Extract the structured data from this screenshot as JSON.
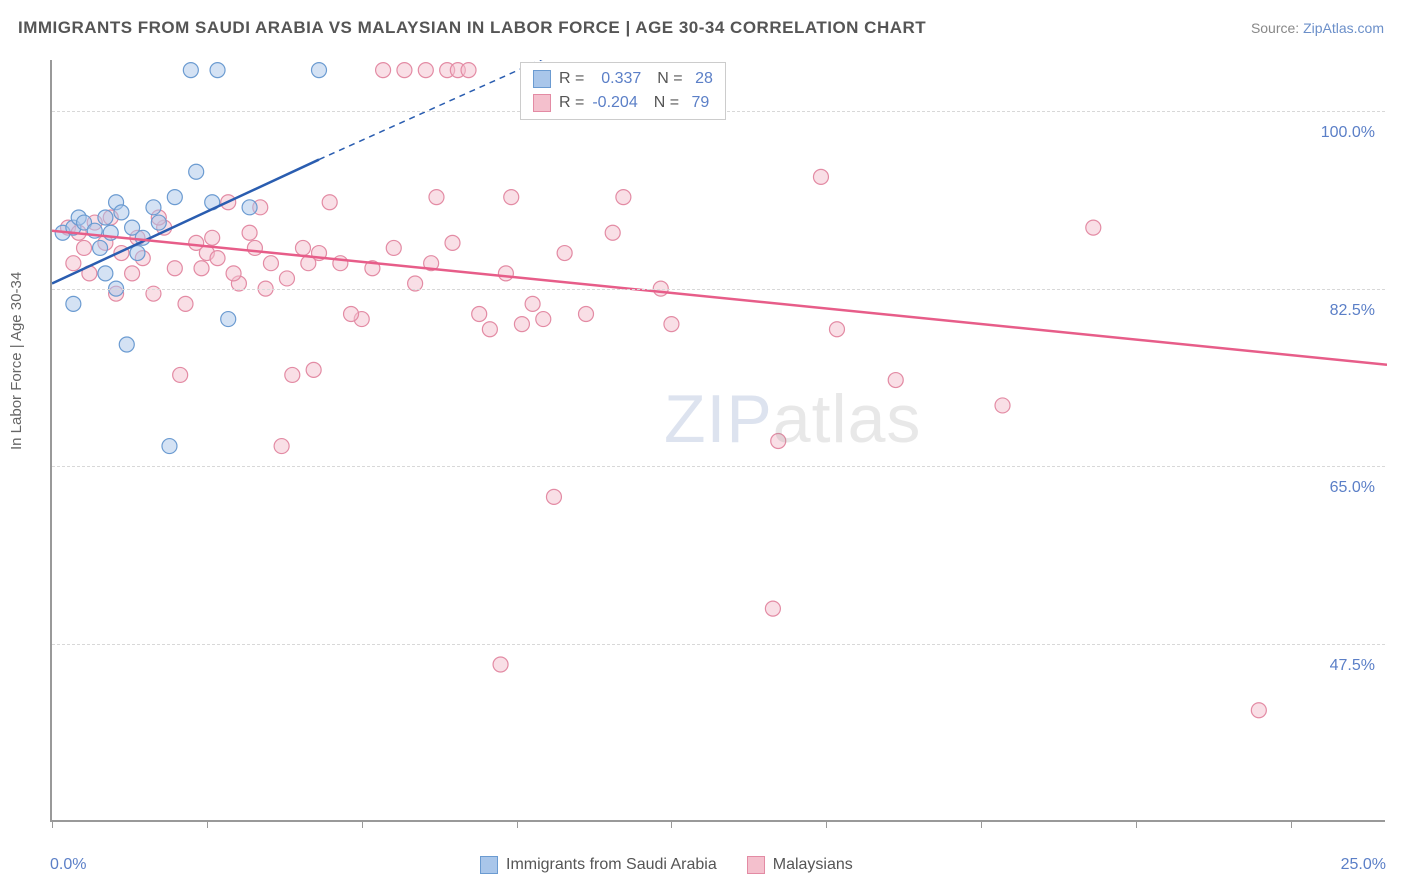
{
  "title": "IMMIGRANTS FROM SAUDI ARABIA VS MALAYSIAN IN LABOR FORCE | AGE 30-34 CORRELATION CHART",
  "source_prefix": "Source: ",
  "source_name": "ZipAtlas.com",
  "y_axis_label": "In Labor Force | Age 30-34",
  "watermark_bold": "ZIP",
  "watermark_thin": "atlas",
  "chart": {
    "type": "scatter",
    "xlim": [
      0.0,
      25.0
    ],
    "ylim": [
      30.0,
      105.0
    ],
    "x_ticks": [
      0.0,
      2.9,
      5.8,
      8.7,
      11.6,
      14.5,
      17.4,
      20.3,
      23.2
    ],
    "x_tick_labels": {
      "left": "0.0%",
      "right": "25.0%"
    },
    "y_gridlines": [
      47.5,
      65.0,
      82.5,
      100.0
    ],
    "y_tick_labels": [
      "47.5%",
      "65.0%",
      "82.5%",
      "100.0%"
    ],
    "background_color": "#ffffff",
    "grid_color": "#d8d8d8",
    "axis_color": "#999999",
    "marker_radius": 7.5,
    "marker_opacity": 0.5,
    "line_width": 2.5,
    "series": [
      {
        "name": "Immigrants from Saudi Arabia",
        "fill_color": "#a9c6ea",
        "stroke_color": "#6b9bd1",
        "line_color": "#2a5db0",
        "R": "0.337",
        "N": "28",
        "trend": {
          "x1": 0.0,
          "y1": 83.0,
          "x2": 5.0,
          "y2": 95.2,
          "dashed_to_x": 10.0,
          "dashed_to_y": 107.0
        },
        "points": [
          [
            0.2,
            88.0
          ],
          [
            0.4,
            88.5
          ],
          [
            0.5,
            89.5
          ],
          [
            0.6,
            89.0
          ],
          [
            0.8,
            88.2
          ],
          [
            0.9,
            86.5
          ],
          [
            1.0,
            89.5
          ],
          [
            1.1,
            88.0
          ],
          [
            1.2,
            91.0
          ],
          [
            1.3,
            90.0
          ],
          [
            1.5,
            88.5
          ],
          [
            1.6,
            86.0
          ],
          [
            1.7,
            87.5
          ],
          [
            1.9,
            90.5
          ],
          [
            2.0,
            89.0
          ],
          [
            0.4,
            81.0
          ],
          [
            1.2,
            82.5
          ],
          [
            1.4,
            77.0
          ],
          [
            2.2,
            67.0
          ],
          [
            2.3,
            91.5
          ],
          [
            2.7,
            94.0
          ],
          [
            3.0,
            91.0
          ],
          [
            3.1,
            104.0
          ],
          [
            3.3,
            79.5
          ],
          [
            3.7,
            90.5
          ],
          [
            5.0,
            104.0
          ],
          [
            2.6,
            104.0
          ],
          [
            1.0,
            84.0
          ]
        ]
      },
      {
        "name": "Malaysians",
        "fill_color": "#f4c0cd",
        "stroke_color": "#e38ba4",
        "line_color": "#e75d89",
        "R": "-0.204",
        "N": "79",
        "trend": {
          "x1": 0.0,
          "y1": 88.2,
          "x2": 25.0,
          "y2": 75.0
        },
        "points": [
          [
            0.3,
            88.5
          ],
          [
            0.5,
            88.0
          ],
          [
            0.6,
            86.5
          ],
          [
            0.8,
            89.0
          ],
          [
            1.0,
            87.0
          ],
          [
            1.1,
            89.5
          ],
          [
            1.3,
            86.0
          ],
          [
            1.5,
            84.0
          ],
          [
            1.7,
            85.5
          ],
          [
            1.9,
            82.0
          ],
          [
            2.1,
            88.5
          ],
          [
            2.3,
            84.5
          ],
          [
            2.5,
            81.0
          ],
          [
            2.7,
            87.0
          ],
          [
            2.9,
            86.0
          ],
          [
            3.1,
            85.5
          ],
          [
            3.3,
            91.0
          ],
          [
            3.5,
            83.0
          ],
          [
            3.7,
            88.0
          ],
          [
            3.9,
            90.5
          ],
          [
            4.1,
            85.0
          ],
          [
            4.3,
            67.0
          ],
          [
            4.5,
            74.0
          ],
          [
            4.7,
            86.5
          ],
          [
            4.9,
            74.5
          ],
          [
            5.2,
            91.0
          ],
          [
            5.4,
            85.0
          ],
          [
            5.8,
            79.5
          ],
          [
            6.2,
            104.0
          ],
          [
            6.4,
            86.5
          ],
          [
            6.6,
            104.0
          ],
          [
            7.0,
            104.0
          ],
          [
            7.2,
            91.5
          ],
          [
            7.4,
            104.0
          ],
          [
            7.6,
            104.0
          ],
          [
            7.8,
            104.0
          ],
          [
            8.2,
            78.5
          ],
          [
            8.4,
            45.5
          ],
          [
            8.6,
            91.5
          ],
          [
            8.8,
            79.0
          ],
          [
            9.2,
            79.5
          ],
          [
            9.4,
            62.0
          ],
          [
            9.6,
            86.0
          ],
          [
            10.5,
            88.0
          ],
          [
            10.6,
            104.0
          ],
          [
            10.7,
            91.5
          ],
          [
            11.4,
            82.5
          ],
          [
            11.6,
            79.0
          ],
          [
            13.5,
            51.0
          ],
          [
            13.6,
            67.5
          ],
          [
            14.4,
            93.5
          ],
          [
            14.7,
            78.5
          ],
          [
            15.8,
            73.5
          ],
          [
            17.8,
            71.0
          ],
          [
            19.5,
            88.5
          ],
          [
            22.6,
            41.0
          ],
          [
            0.4,
            85.0
          ],
          [
            0.7,
            84.0
          ],
          [
            1.2,
            82.0
          ],
          [
            1.6,
            87.5
          ],
          [
            2.0,
            89.5
          ],
          [
            2.4,
            74.0
          ],
          [
            2.8,
            84.5
          ],
          [
            3.0,
            87.5
          ],
          [
            3.4,
            84.0
          ],
          [
            3.8,
            86.5
          ],
          [
            4.0,
            82.5
          ],
          [
            4.4,
            83.5
          ],
          [
            4.8,
            85.0
          ],
          [
            5.0,
            86.0
          ],
          [
            5.6,
            80.0
          ],
          [
            6.0,
            84.5
          ],
          [
            6.8,
            83.0
          ],
          [
            7.1,
            85.0
          ],
          [
            7.5,
            87.0
          ],
          [
            8.0,
            80.0
          ],
          [
            8.5,
            84.0
          ],
          [
            9.0,
            81.0
          ],
          [
            10.0,
            80.0
          ]
        ]
      }
    ],
    "legend_top": {
      "R_label": "R =",
      "N_label": "N ="
    },
    "legend_bottom_items": [
      "Immigrants from Saudi Arabia",
      "Malaysians"
    ]
  }
}
